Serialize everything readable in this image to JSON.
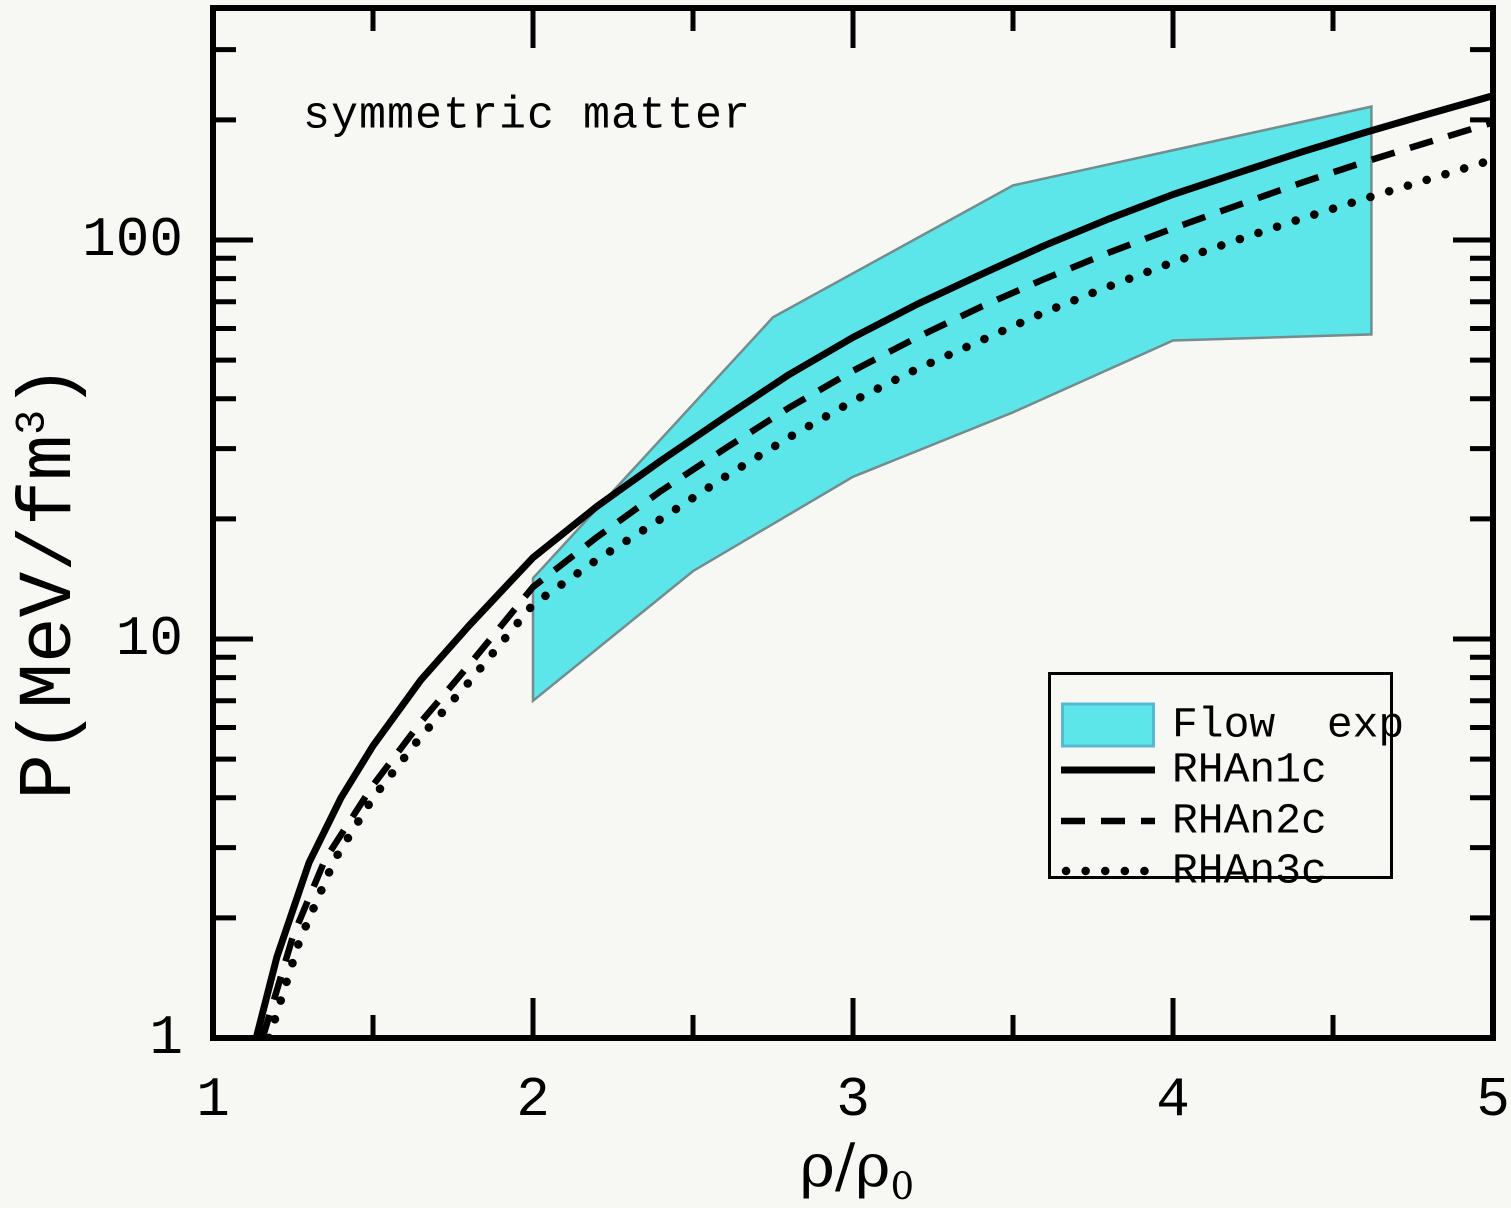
{
  "figure": {
    "background": "#f7f7f4",
    "axis_color": "#000000",
    "annotation": "symmetric matter"
  },
  "chart_data": {
    "type": "line",
    "title": "",
    "annotation": "symmetric matter",
    "xlabel": "ρ/ρ₀",
    "ylabel": "P(MeV/fm³)",
    "xlabel_parts": {
      "pre": "ρ/ρ",
      "sub": "0"
    },
    "ylabel_parts": {
      "pre": "P(MeV/fm",
      "sup": "3",
      "post": ")"
    },
    "x_scale": "linear",
    "y_scale": "log",
    "xlim": [
      1,
      5
    ],
    "ylim": [
      1,
      381
    ],
    "grid": false,
    "x_major_ticks": [
      2,
      3,
      4
    ],
    "x_minor_ticks": [
      1.5,
      2.5,
      3.5,
      4.5
    ],
    "y_major_ticks": [
      10,
      100
    ],
    "y_minor_ticks": [
      2,
      3,
      4,
      5,
      6,
      7,
      8,
      9,
      20,
      30,
      40,
      50,
      60,
      70,
      80,
      90,
      200,
      300
    ],
    "x_tick_labels": [
      {
        "v": 1,
        "t": "1"
      },
      {
        "v": 2,
        "t": "2"
      },
      {
        "v": 3,
        "t": "3"
      },
      {
        "v": 4,
        "t": "4"
      },
      {
        "v": 5,
        "t": "5"
      }
    ],
    "y_tick_labels": [
      {
        "v": 1,
        "t": "1"
      },
      {
        "v": 10,
        "t": "10"
      },
      {
        "v": 100,
        "t": "100"
      }
    ],
    "band": {
      "name": "Flow exp",
      "fill": "#5ce6e9",
      "stroke": "#738c8e",
      "stroke_width": 2.5,
      "x_range": [
        2.0,
        4.62
      ],
      "upper_boundary": [
        [
          2.0,
          14.2
        ],
        [
          2.75,
          64
        ],
        [
          3.5,
          137
        ],
        [
          4.62,
          216
        ]
      ],
      "lower_boundary": [
        [
          2.0,
          7.0
        ],
        [
          2.5,
          14.8
        ],
        [
          3.0,
          25.5
        ],
        [
          3.5,
          37
        ],
        [
          4.0,
          56
        ],
        [
          4.62,
          58
        ]
      ]
    },
    "series": [
      {
        "name": "RHAn1c",
        "style": "solid",
        "color": "#000000",
        "points": [
          [
            1.135,
            1.0
          ],
          [
            1.2,
            1.6
          ],
          [
            1.3,
            2.75
          ],
          [
            1.4,
            4.0
          ],
          [
            1.5,
            5.4
          ],
          [
            1.65,
            7.9
          ],
          [
            1.8,
            10.8
          ],
          [
            2.0,
            16.0
          ],
          [
            2.2,
            21.5
          ],
          [
            2.4,
            28
          ],
          [
            2.6,
            36
          ],
          [
            2.8,
            46
          ],
          [
            3.0,
            57
          ],
          [
            3.2,
            69
          ],
          [
            3.4,
            82
          ],
          [
            3.6,
            97
          ],
          [
            3.8,
            113
          ],
          [
            4.0,
            130
          ],
          [
            4.2,
            147
          ],
          [
            4.4,
            166
          ],
          [
            4.6,
            186
          ],
          [
            4.8,
            207
          ],
          [
            5.0,
            230
          ]
        ]
      },
      {
        "name": "RHAn2c",
        "style": "dashed",
        "color": "#000000",
        "points": [
          [
            1.155,
            1.0
          ],
          [
            1.25,
            1.8
          ],
          [
            1.35,
            2.8
          ],
          [
            1.5,
            4.3
          ],
          [
            1.65,
            6.2
          ],
          [
            1.8,
            8.6
          ],
          [
            2.0,
            13.5
          ],
          [
            2.2,
            18
          ],
          [
            2.4,
            23.5
          ],
          [
            2.6,
            30
          ],
          [
            2.8,
            38
          ],
          [
            3.0,
            47
          ],
          [
            3.2,
            57
          ],
          [
            3.4,
            68
          ],
          [
            3.6,
            80
          ],
          [
            3.8,
            93
          ],
          [
            4.0,
            107
          ],
          [
            4.2,
            122
          ],
          [
            4.4,
            139
          ],
          [
            4.6,
            157
          ],
          [
            4.8,
            176
          ],
          [
            5.0,
            197
          ]
        ]
      },
      {
        "name": "RHAn3c",
        "style": "dotted",
        "color": "#000000",
        "points": [
          [
            1.175,
            1.0
          ],
          [
            1.27,
            1.75
          ],
          [
            1.38,
            2.8
          ],
          [
            1.5,
            4.0
          ],
          [
            1.65,
            5.7
          ],
          [
            1.8,
            7.8
          ],
          [
            2.0,
            12.2
          ],
          [
            2.2,
            15.8
          ],
          [
            2.4,
            20
          ],
          [
            2.6,
            25.5
          ],
          [
            2.8,
            32
          ],
          [
            3.0,
            39.5
          ],
          [
            3.2,
            47.5
          ],
          [
            3.4,
            56
          ],
          [
            3.6,
            66
          ],
          [
            3.8,
            76.5
          ],
          [
            4.0,
            88
          ],
          [
            4.2,
            100
          ],
          [
            4.4,
            113
          ],
          [
            4.6,
            127
          ],
          [
            4.8,
            142
          ],
          [
            5.0,
            159
          ]
        ]
      }
    ],
    "legend_position": "lower right"
  },
  "legend": {
    "items": [
      {
        "label": "Flow  exp",
        "style": "band",
        "swatch_fill": "#5ce6e9",
        "swatch_stroke": "#56b8d4"
      },
      {
        "label": "RHAn1c",
        "style": "solid"
      },
      {
        "label": "RHAn2c",
        "style": "dashed"
      },
      {
        "label": "RHAn3c",
        "style": "dotted"
      }
    ]
  }
}
